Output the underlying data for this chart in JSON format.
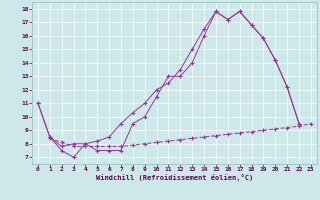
{
  "bg_color": "#cce8e8",
  "line_color": "#993399",
  "grid_color": "#ffffff",
  "xlabel": "Windchill (Refroidissement éolien,°C)",
  "xlim": [
    -0.5,
    23.5
  ],
  "ylim": [
    6.5,
    18.5
  ],
  "yticks": [
    7,
    8,
    9,
    10,
    11,
    12,
    13,
    14,
    15,
    16,
    17,
    18
  ],
  "xticks": [
    0,
    1,
    2,
    3,
    4,
    5,
    6,
    7,
    8,
    9,
    10,
    11,
    12,
    13,
    14,
    15,
    16,
    17,
    18,
    19,
    20,
    21,
    22,
    23
  ],
  "line1_x": [
    0,
    1,
    2,
    3,
    4,
    5,
    6,
    7,
    8,
    9,
    10,
    11,
    12,
    13,
    14,
    15,
    16,
    17,
    18,
    19,
    20,
    21,
    22
  ],
  "line1_y": [
    11,
    8.5,
    7.5,
    7.0,
    8.0,
    7.5,
    7.5,
    7.5,
    9.5,
    10.0,
    11.5,
    13.0,
    13.0,
    14.0,
    16.0,
    17.8,
    17.2,
    17.8,
    16.8,
    15.8,
    14.2,
    12.2,
    9.5
  ],
  "line2_x": [
    0,
    1,
    2,
    3,
    4,
    5,
    6,
    7,
    8,
    9,
    10,
    11,
    12,
    13,
    14,
    15,
    16,
    17,
    18,
    19,
    20,
    21,
    22
  ],
  "line2_y": [
    11,
    8.5,
    7.8,
    8.0,
    8.0,
    8.2,
    8.5,
    9.5,
    10.3,
    11.0,
    12.0,
    12.5,
    13.5,
    15.0,
    16.5,
    17.8,
    17.2,
    17.8,
    16.8,
    15.8,
    14.2,
    12.2,
    9.5
  ],
  "line3_x": [
    1,
    2,
    3,
    4,
    5,
    6,
    7,
    8,
    9,
    10,
    11,
    12,
    13,
    14,
    15,
    16,
    17,
    18,
    19,
    20,
    21,
    22,
    23
  ],
  "line3_y": [
    8.4,
    8.1,
    7.8,
    7.8,
    7.8,
    7.8,
    7.8,
    7.9,
    8.0,
    8.1,
    8.2,
    8.3,
    8.4,
    8.5,
    8.6,
    8.7,
    8.8,
    8.9,
    9.0,
    9.1,
    9.2,
    9.3,
    9.5
  ]
}
